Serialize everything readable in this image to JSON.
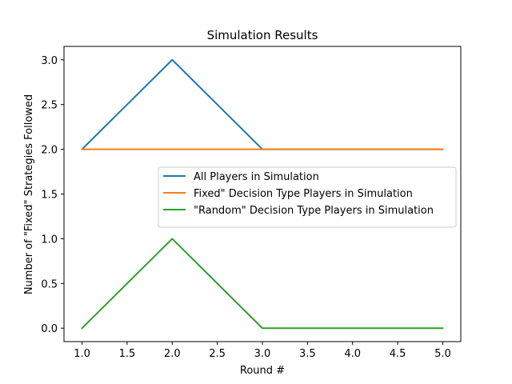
{
  "chart_data": {
    "type": "line",
    "title": "Simulation Results",
    "xlabel": "Round #",
    "ylabel": "Number of \"Fixed\" Strategies Followed",
    "xlim": [
      0.8,
      5.2
    ],
    "ylim": [
      -0.15,
      3.15
    ],
    "xticks": [
      1.0,
      1.5,
      2.0,
      2.5,
      3.0,
      3.5,
      4.0,
      4.5,
      5.0
    ],
    "xtick_labels": [
      "1.0",
      "1.5",
      "2.0",
      "2.5",
      "3.0",
      "3.5",
      "4.0",
      "4.5",
      "5.0"
    ],
    "yticks": [
      0.0,
      0.5,
      1.0,
      1.5,
      2.0,
      2.5,
      3.0
    ],
    "ytick_labels": [
      "0.0",
      "0.5",
      "1.0",
      "1.5",
      "2.0",
      "2.5",
      "3.0"
    ],
    "grid": false,
    "legend_position": "center-right",
    "x": [
      1,
      2,
      3,
      4,
      5
    ],
    "series": [
      {
        "name": "All Players in Simulation",
        "color": "#1f77b4",
        "values": [
          2,
          3,
          2,
          2,
          2
        ]
      },
      {
        "name": "Fixed\" Decision Type Players in Simulation",
        "color": "#ff7f0e",
        "values": [
          2,
          2,
          2,
          2,
          2
        ]
      },
      {
        "name": "\"Random\" Decision Type Players in Simulation",
        "color": "#2ca02c",
        "values": [
          0,
          1,
          0,
          0,
          0
        ]
      }
    ]
  }
}
